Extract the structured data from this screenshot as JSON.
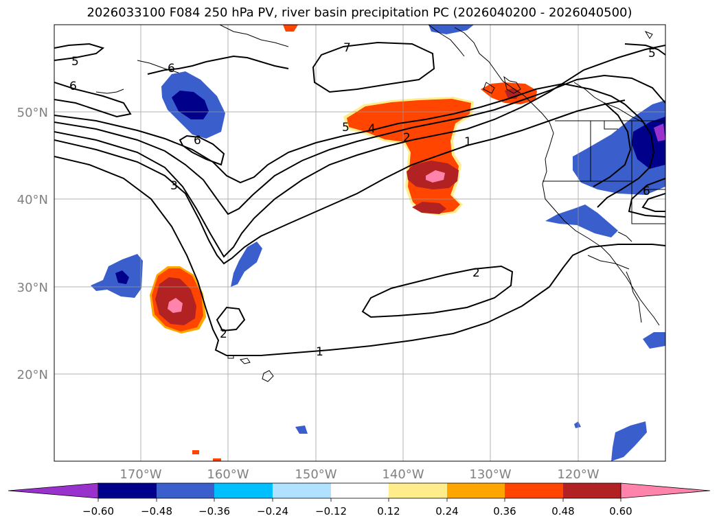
{
  "title": "2026033100 F084 250 hPa PV, river basin precipitation PC (2026040200 - 2026040500)",
  "map": {
    "lat_labels": [
      "50°N",
      "40°N",
      "30°N",
      "20°N"
    ],
    "lon_labels": [
      "170°W",
      "160°W",
      "150°W",
      "140°W",
      "130°W",
      "120°W"
    ],
    "contour_labels": [
      {
        "id": "c5a",
        "text": "5"
      },
      {
        "id": "c6a",
        "text": "6"
      },
      {
        "id": "c6b",
        "text": "6"
      },
      {
        "id": "c6c",
        "text": "6"
      },
      {
        "id": "c3",
        "text": "3"
      },
      {
        "id": "c7",
        "text": "7"
      },
      {
        "id": "c5b",
        "text": "5"
      },
      {
        "id": "c4",
        "text": "4"
      },
      {
        "id": "c2a",
        "text": "2"
      },
      {
        "id": "c1a",
        "text": "1"
      },
      {
        "id": "c2b",
        "text": "2"
      },
      {
        "id": "c2c",
        "text": "2"
      },
      {
        "id": "c1b",
        "text": "1"
      },
      {
        "id": "c5c",
        "text": "5"
      },
      {
        "id": "c6d",
        "text": "6"
      }
    ]
  },
  "colorbar": {
    "colors": [
      "#9932CC",
      "#00008B",
      "#3A5FCD",
      "#00BFFF",
      "#B0E2FF",
      "#FFFFFF",
      "#FFEC8B",
      "#FFA500",
      "#FF4500",
      "#B22222",
      "#FF83AA"
    ],
    "ticks": [
      "−0.60",
      "−0.48",
      "−0.36",
      "−0.24",
      "−0.12",
      "0.12",
      "0.24",
      "0.36",
      "0.48",
      "0.60"
    ]
  }
}
